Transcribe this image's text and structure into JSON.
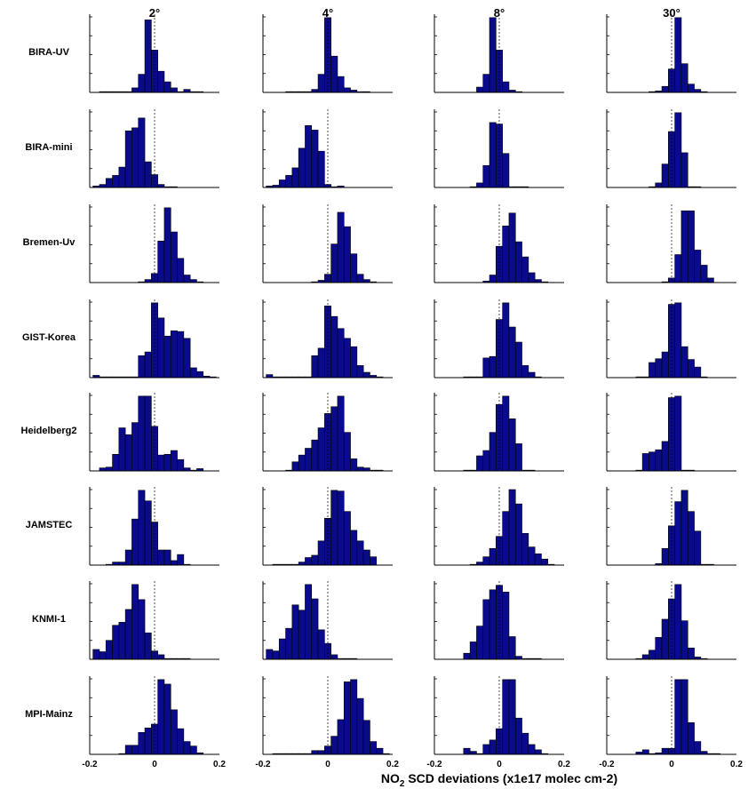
{
  "chart_data": {
    "type": "bar",
    "columns": [
      "2°",
      "4°",
      "8°",
      "30°"
    ],
    "rows": [
      "BIRA-UV",
      "BIRA-mini",
      "Bremen-Uv",
      "GIST-Korea",
      "Heidelberg2",
      "JAMSTEC",
      "KNMI-1",
      "MPI-Mainz"
    ],
    "xlim": [
      -0.2,
      0.2
    ],
    "xticks": [
      "-0.2",
      "0",
      "0.2"
    ],
    "xlabel": {
      "main": "NO",
      "sub": "2",
      "rest": " SCD deviations (x1e17 molec cm-2)"
    },
    "bar_color": "#0a0a8c",
    "bin_width": 0.02,
    "panels": [
      [
        {
          "start": -0.17,
          "values": [
            1,
            1,
            1,
            1,
            1,
            6,
            24,
            96,
            56,
            28,
            14,
            6,
            1,
            4,
            1,
            1
          ]
        },
        {
          "start": -0.13,
          "values": [
            1,
            1,
            1,
            1,
            4,
            24,
            99,
            48,
            21,
            6,
            3,
            1,
            1
          ]
        },
        {
          "start": -0.07,
          "values": [
            7,
            24,
            99,
            56,
            14,
            3,
            1
          ]
        },
        {
          "start": -0.07,
          "values": [
            1,
            2,
            8,
            31,
            99,
            38,
            11,
            4,
            1
          ]
        }
      ],
      [
        {
          "start": -0.19,
          "values": [
            2,
            4,
            12,
            16,
            27,
            75,
            79,
            92,
            34,
            17,
            4,
            1,
            1
          ]
        },
        {
          "start": -0.19,
          "values": [
            2,
            3,
            10,
            16,
            26,
            52,
            82,
            76,
            48,
            4,
            1,
            2
          ]
        },
        {
          "start": -0.09,
          "values": [
            1,
            6,
            29,
            86,
            84,
            45,
            1,
            1,
            1
          ]
        },
        {
          "start": -0.07,
          "values": [
            1,
            6,
            31,
            74,
            99,
            46,
            1,
            1
          ]
        }
      ],
      [
        {
          "start": -0.05,
          "values": [
            1,
            4,
            12,
            55,
            99,
            67,
            32,
            10,
            4,
            1
          ]
        },
        {
          "start": -0.05,
          "values": [
            1,
            3,
            11,
            51,
            93,
            74,
            38,
            11,
            4,
            1
          ]
        },
        {
          "start": -0.05,
          "values": [
            2,
            10,
            48,
            75,
            92,
            54,
            34,
            13,
            4,
            1
          ]
        },
        {
          "start": -0.03,
          "values": [
            1,
            6,
            37,
            95,
            95,
            43,
            23,
            6
          ]
        }
      ],
      [
        {
          "start": -0.19,
          "values": [
            3,
            1,
            1,
            1,
            1,
            1,
            1,
            29,
            34,
            99,
            79,
            55,
            62,
            61,
            52,
            13,
            8,
            2,
            1
          ]
        },
        {
          "start": -0.19,
          "values": [
            4,
            1,
            1,
            1,
            1,
            1,
            1,
            29,
            39,
            95,
            81,
            65,
            52,
            41,
            16,
            7,
            3,
            1
          ]
        },
        {
          "start": -0.11,
          "values": [
            1,
            1,
            1,
            26,
            28,
            77,
            99,
            67,
            47,
            16,
            7,
            1
          ]
        },
        {
          "start": -0.11,
          "values": [
            1,
            1,
            20,
            25,
            34,
            97,
            99,
            41,
            24,
            14,
            1
          ]
        }
      ],
      [
        {
          "start": -0.17,
          "values": [
            4,
            5,
            22,
            57,
            48,
            64,
            99,
            99,
            59,
            21,
            22,
            27,
            15,
            4,
            1,
            3
          ]
        },
        {
          "start": -0.13,
          "values": [
            1,
            12,
            21,
            30,
            41,
            57,
            76,
            85,
            99,
            51,
            16,
            5,
            4,
            1,
            1
          ]
        },
        {
          "start": -0.11,
          "values": [
            1,
            1,
            20,
            27,
            51,
            88,
            99,
            69,
            36,
            1,
            1
          ]
        },
        {
          "start": -0.11,
          "values": [
            1,
            23,
            25,
            28,
            39,
            97,
            99,
            1,
            1
          ]
        }
      ],
      [
        {
          "start": -0.15,
          "values": [
            1,
            4,
            4,
            20,
            61,
            99,
            85,
            57,
            20,
            20,
            6,
            14,
            1
          ]
        },
        {
          "start": -0.17,
          "values": [
            1,
            1,
            1,
            1,
            4,
            10,
            13,
            32,
            62,
            99,
            98,
            71,
            46,
            32,
            20,
            11
          ]
        },
        {
          "start": -0.09,
          "values": [
            1,
            4,
            11,
            22,
            38,
            71,
            100,
            81,
            42,
            24,
            15,
            8,
            1
          ]
        },
        {
          "start": -0.05,
          "values": [
            2,
            22,
            52,
            84,
            99,
            71,
            45,
            1,
            1
          ]
        }
      ],
      [
        {
          "start": -0.19,
          "values": [
            13,
            10,
            25,
            45,
            49,
            66,
            99,
            79,
            35,
            11,
            6,
            1,
            1,
            1,
            1
          ]
        },
        {
          "start": -0.19,
          "values": [
            13,
            11,
            27,
            41,
            72,
            65,
            99,
            80,
            39,
            21,
            6,
            1,
            1,
            1
          ]
        },
        {
          "start": -0.11,
          "values": [
            8,
            23,
            44,
            79,
            92,
            98,
            89,
            30,
            4,
            1,
            1,
            1
          ]
        },
        {
          "start": -0.11,
          "values": [
            1,
            6,
            12,
            29,
            53,
            80,
            99,
            51,
            15,
            3,
            1
          ]
        }
      ],
      [
        {
          "start": -0.11,
          "values": [
            1,
            12,
            12,
            29,
            35,
            40,
            99,
            93,
            59,
            34,
            17,
            11,
            2
          ]
        },
        {
          "start": -0.17,
          "values": [
            1,
            1,
            1,
            1,
            1,
            1,
            5,
            5,
            11,
            24,
            46,
            96,
            99,
            74,
            45,
            17,
            8,
            1
          ]
        },
        {
          "start": -0.11,
          "values": [
            8,
            4,
            1,
            13,
            19,
            34,
            99,
            99,
            48,
            28,
            13,
            6,
            1
          ]
        },
        {
          "start": -0.11,
          "values": [
            3,
            6,
            1,
            2,
            8,
            8,
            99,
            99,
            42,
            17,
            4,
            1,
            1
          ]
        }
      ]
    ]
  }
}
